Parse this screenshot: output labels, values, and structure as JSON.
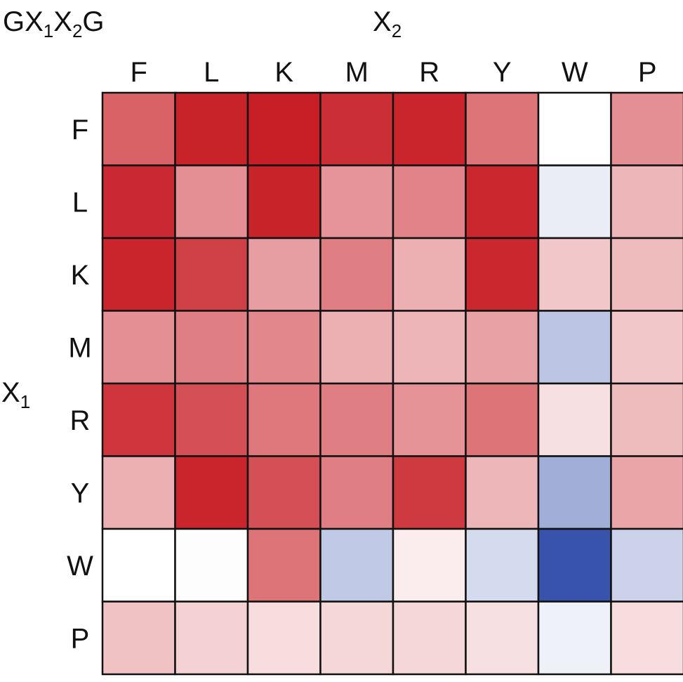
{
  "chart_data": {
    "type": "heatmap",
    "title": {
      "base": "GX",
      "sub1": "1",
      "mid": "X",
      "sub2": "2",
      "end": "G"
    },
    "xlabel": {
      "base": "X",
      "sub": "2"
    },
    "ylabel": {
      "base": "X",
      "sub": "1"
    },
    "x_categories": [
      "F",
      "L",
      "K",
      "M",
      "R",
      "Y",
      "W",
      "P"
    ],
    "y_categories": [
      "F",
      "L",
      "K",
      "M",
      "R",
      "Y",
      "W",
      "P"
    ],
    "value_range": [
      -1,
      1
    ],
    "colors": {
      "negative": "#2e4aa8",
      "neutral": "#ffffff",
      "positive": "#c81e26",
      "grid": "#111111"
    },
    "values": [
      [
        0.7,
        0.98,
        1.0,
        0.93,
        0.97,
        0.62,
        0.0,
        0.5
      ],
      [
        0.95,
        0.5,
        0.98,
        0.47,
        0.55,
        0.96,
        -0.1,
        0.32
      ],
      [
        0.97,
        0.85,
        0.43,
        0.57,
        0.35,
        0.96,
        0.25,
        0.3
      ],
      [
        0.5,
        0.57,
        0.53,
        0.35,
        0.33,
        0.42,
        -0.32,
        0.25
      ],
      [
        0.9,
        0.78,
        0.6,
        0.57,
        0.48,
        0.62,
        0.14,
        0.3
      ],
      [
        0.35,
        0.97,
        0.78,
        0.57,
        0.88,
        0.32,
        -0.45,
        0.4
      ],
      [
        0.0,
        0.01,
        0.62,
        -0.3,
        0.08,
        -0.2,
        -0.95,
        -0.25
      ],
      [
        0.27,
        0.2,
        0.15,
        0.18,
        0.18,
        0.14,
        -0.08,
        0.15
      ]
    ]
  }
}
